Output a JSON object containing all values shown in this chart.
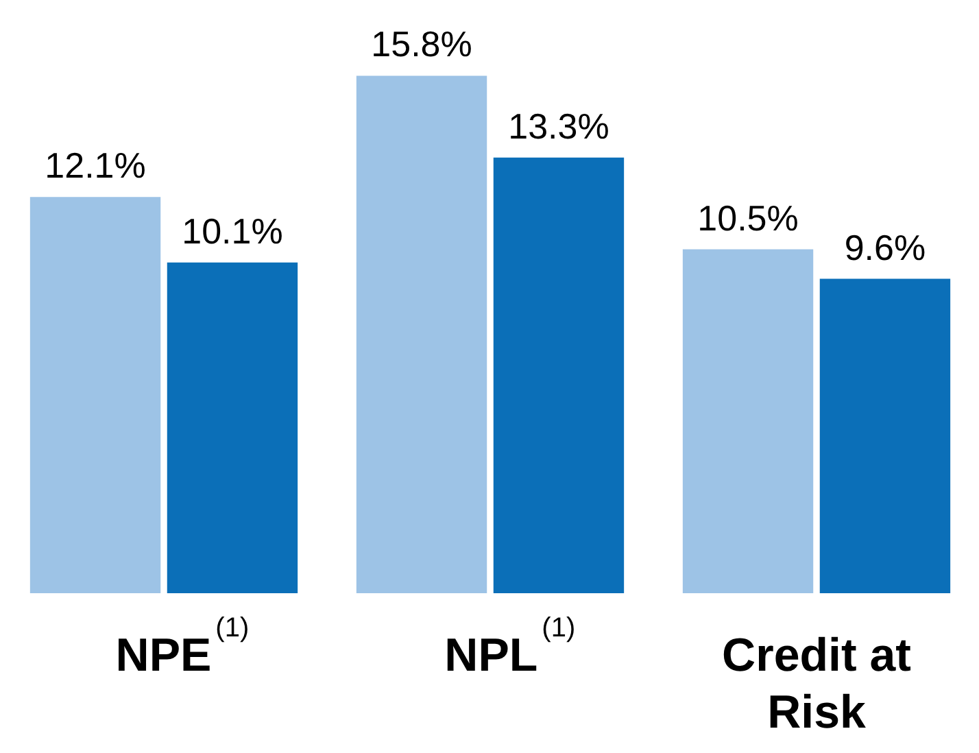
{
  "chart_data": {
    "type": "bar",
    "categories": [
      "NPE$^{(1)}$",
      "NPL$^{(1)}$",
      "Credit at Risk"
    ],
    "series": [
      {
        "color": "#9dc3e6",
        "values": [
          12.1,
          15.8,
          10.5
        ],
        "value_labels": [
          "12.1%",
          "15.8%",
          "10.5%"
        ]
      },
      {
        "color": "#0b6fb8",
        "values": [
          10.1,
          13.3,
          9.6
        ],
        "value_labels": [
          "10.1%",
          "13.3%",
          "9.6%"
        ]
      }
    ]
  }
}
